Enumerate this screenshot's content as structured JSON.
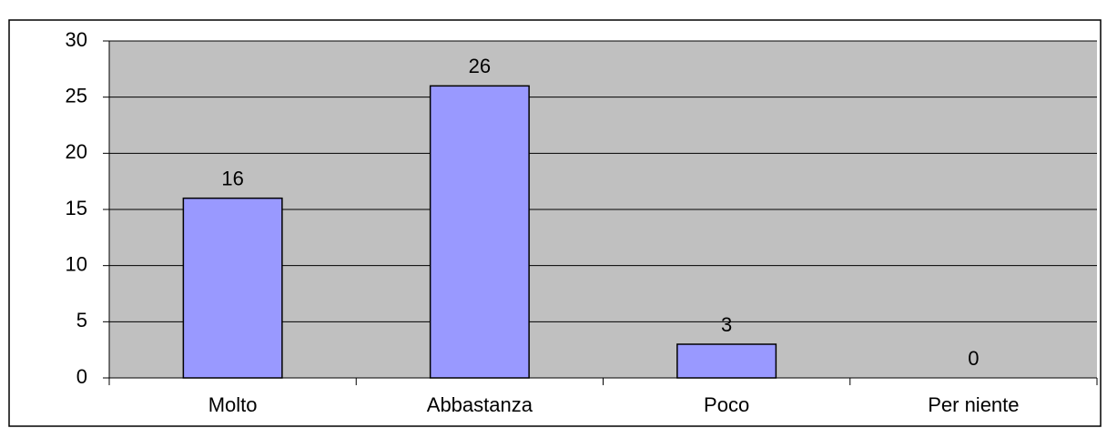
{
  "chart_data": {
    "type": "bar",
    "categories": [
      "Molto",
      "Abbastanza",
      "Poco",
      "Per niente"
    ],
    "values": [
      16,
      26,
      3,
      0
    ],
    "color": "#9999ff",
    "ylim": [
      0,
      30
    ],
    "yticks": [
      0,
      5,
      10,
      15,
      20,
      25,
      30
    ],
    "grid": true
  }
}
